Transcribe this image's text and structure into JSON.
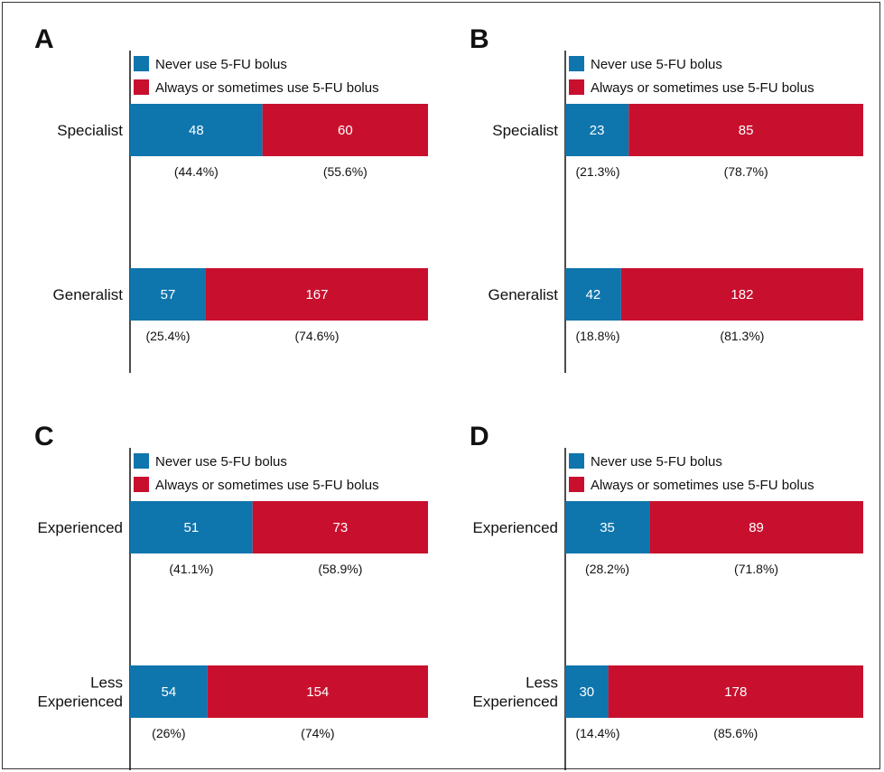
{
  "colors": {
    "never": "#0f75ad",
    "sometimes": "#c8102e"
  },
  "chart_data": [
    {
      "panel": "A",
      "type": "bar",
      "orientation": "horizontal",
      "stacked": true,
      "legend": [
        "Never use 5-FU bolus",
        "Always or sometimes use 5-FU bolus"
      ],
      "categories": [
        [
          "Specialist"
        ],
        [
          "Generalist"
        ]
      ],
      "series": [
        {
          "name": "Never use 5-FU bolus",
          "values": [
            48,
            57
          ],
          "labels": [
            "(44.4%)",
            "(25.4%)"
          ]
        },
        {
          "name": "Always or sometimes use 5-FU bolus",
          "values": [
            60,
            167
          ],
          "labels": [
            "(55.6%)",
            "(74.6%)"
          ]
        }
      ]
    },
    {
      "panel": "B",
      "type": "bar",
      "orientation": "horizontal",
      "stacked": true,
      "legend": [
        "Never use 5-FU bolus",
        "Always or sometimes use 5-FU bolus"
      ],
      "categories": [
        [
          "Specialist"
        ],
        [
          "Generalist"
        ]
      ],
      "series": [
        {
          "name": "Never use 5-FU bolus",
          "values": [
            23,
            42
          ],
          "labels": [
            "(21.3%)",
            "(18.8%)"
          ]
        },
        {
          "name": "Always or sometimes use 5-FU bolus",
          "values": [
            85,
            182
          ],
          "labels": [
            "(78.7%)",
            "(81.3%)"
          ]
        }
      ]
    },
    {
      "panel": "C",
      "type": "bar",
      "orientation": "horizontal",
      "stacked": true,
      "legend": [
        "Never use 5-FU bolus",
        "Always or sometimes use 5-FU bolus"
      ],
      "categories": [
        [
          "Experienced"
        ],
        [
          "Less",
          "Experienced"
        ]
      ],
      "series": [
        {
          "name": "Never use 5-FU bolus",
          "values": [
            51,
            54
          ],
          "labels": [
            "(41.1%)",
            "(26%)"
          ]
        },
        {
          "name": "Always or sometimes use 5-FU bolus",
          "values": [
            73,
            154
          ],
          "labels": [
            "(58.9%)",
            "(74%)"
          ]
        }
      ]
    },
    {
      "panel": "D",
      "type": "bar",
      "orientation": "horizontal",
      "stacked": true,
      "legend": [
        "Never use 5-FU bolus",
        "Always or sometimes use 5-FU bolus"
      ],
      "categories": [
        [
          "Experienced"
        ],
        [
          "Less",
          "Experienced"
        ]
      ],
      "series": [
        {
          "name": "Never use 5-FU bolus",
          "values": [
            35,
            30
          ],
          "labels": [
            "(28.2%)",
            "(14.4%)"
          ]
        },
        {
          "name": "Always or sometimes use 5-FU bolus",
          "values": [
            89,
            178
          ],
          "labels": [
            "(71.8%)",
            "(85.6%)"
          ]
        }
      ]
    }
  ]
}
